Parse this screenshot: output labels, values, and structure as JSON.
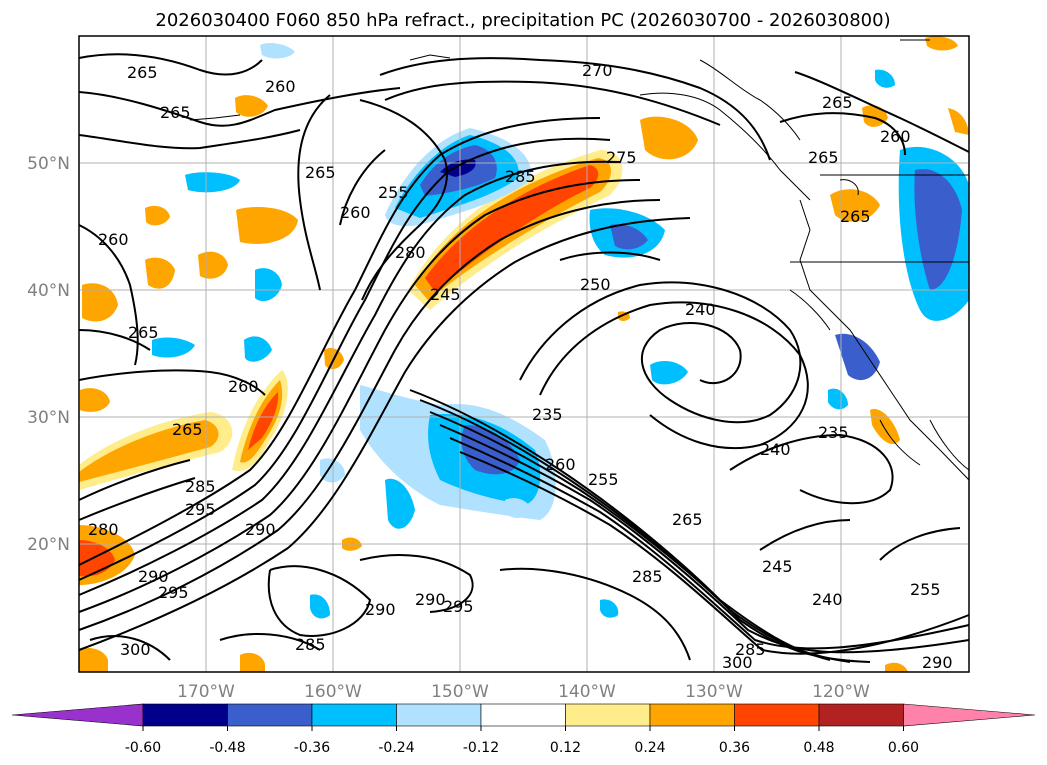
{
  "title": "2026030400 F060 850 hPa refract., precipitation PC (2026030700 - 2026030800)",
  "lat_labels": [
    "50°N",
    "40°N",
    "30°N",
    "20°N"
  ],
  "lon_labels": [
    "170°W",
    "160°W",
    "150°W",
    "140°W",
    "130°W",
    "120°W"
  ],
  "colorbar": {
    "ticks": [
      "-0.60",
      "-0.48",
      "-0.36",
      "-0.24",
      "-0.12",
      "0.12",
      "0.24",
      "0.36",
      "0.48",
      "0.60"
    ],
    "colors": [
      "#9932cc",
      "#00008b",
      "#3a5fcd",
      "#00bfff",
      "#b0e2ff",
      "#ffffff",
      "#ffec8b",
      "#ffa500",
      "#ff4500",
      "#b22222",
      "#ff82ab"
    ]
  },
  "contour_labels": [
    {
      "text": "265"
    },
    {
      "text": "260"
    },
    {
      "text": "265"
    },
    {
      "text": "270"
    },
    {
      "text": "265"
    },
    {
      "text": "260"
    },
    {
      "text": "265"
    },
    {
      "text": "265"
    },
    {
      "text": "265"
    },
    {
      "text": "260"
    },
    {
      "text": "255"
    },
    {
      "text": "285"
    },
    {
      "text": "275"
    },
    {
      "text": "260"
    },
    {
      "text": "280"
    },
    {
      "text": "245"
    },
    {
      "text": "250"
    },
    {
      "text": "240"
    },
    {
      "text": "260"
    },
    {
      "text": "265"
    },
    {
      "text": "265"
    },
    {
      "text": "235"
    },
    {
      "text": "240"
    },
    {
      "text": "235"
    },
    {
      "text": "260"
    },
    {
      "text": "255"
    },
    {
      "text": "285"
    },
    {
      "text": "295"
    },
    {
      "text": "280"
    },
    {
      "text": "290"
    },
    {
      "text": "265"
    },
    {
      "text": "245"
    },
    {
      "text": "290"
    },
    {
      "text": "295"
    },
    {
      "text": "285"
    },
    {
      "text": "240"
    },
    {
      "text": "290"
    },
    {
      "text": "290"
    },
    {
      "text": "295"
    },
    {
      "text": "285"
    },
    {
      "text": "300"
    },
    {
      "text": "300"
    },
    {
      "text": "285"
    },
    {
      "text": "290"
    },
    {
      "text": "255"
    }
  ]
}
